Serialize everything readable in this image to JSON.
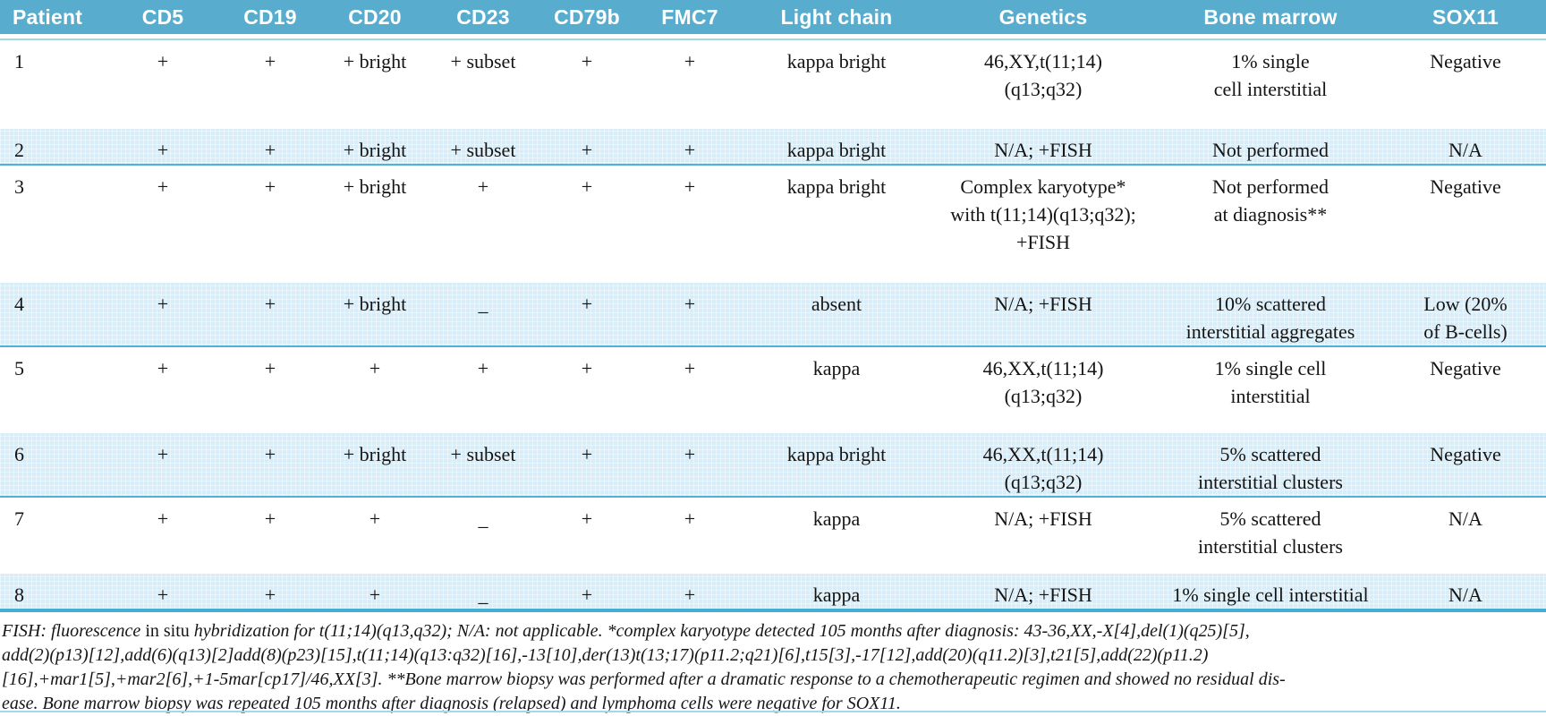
{
  "table": {
    "columns": [
      "Patient",
      "CD5",
      "CD19",
      "CD20",
      "CD23",
      "CD79b",
      "FMC7",
      "Light chain",
      "Genetics",
      "Bone marrow",
      "SOX11"
    ],
    "column_keys": [
      "patient",
      "cd5",
      "cd19",
      "cd20",
      "cd23",
      "cd79b",
      "fmc7",
      "light-chain",
      "genetics",
      "bone-marrow",
      "sox11"
    ],
    "rows": [
      {
        "cells": [
          "1",
          "+",
          "+",
          "+ bright",
          "+ subset",
          "+",
          "+",
          "kappa bright",
          "46,XY,t(11;14)\n(q13;q32)",
          "1% single\ncell interstitial",
          "Negative"
        ]
      },
      {
        "cells": [
          "2",
          "+",
          "+",
          "+ bright",
          "+ subset",
          "+",
          "+",
          "kappa bright",
          "N/A; +FISH",
          "Not performed",
          "N/A"
        ]
      },
      {
        "cells": [
          "3",
          "+",
          "+",
          "+ bright",
          "+",
          "+",
          "+",
          "kappa bright",
          "Complex karyotype*\nwith t(11;14)(q13;q32);\n+FISH",
          "Not performed\nat diagnosis**",
          "Negative"
        ]
      },
      {
        "cells": [
          "4",
          "+",
          "+",
          "+ bright",
          "_",
          "+",
          "+",
          "absent",
          "N/A; +FISH",
          "10% scattered\ninterstitial aggregates",
          "Low (20%\nof B-cells)"
        ]
      },
      {
        "cells": [
          "5",
          "+",
          "+",
          "+",
          "+",
          "+",
          "+",
          "kappa",
          "46,XX,t(11;14)\n(q13;q32)",
          "1% single cell\ninterstitial",
          "Negative"
        ]
      },
      {
        "cells": [
          "6",
          "+",
          "+",
          "+ bright",
          "+ subset",
          "+",
          "+",
          "kappa bright",
          "46,XX,t(11;14)\n(q13;q32)",
          "5% scattered\ninterstitial clusters",
          "Negative"
        ]
      },
      {
        "cells": [
          "7",
          "+",
          "+",
          "+",
          "_",
          "+",
          "+",
          "kappa",
          "N/A; +FISH",
          "5% scattered\ninterstitial clusters",
          "N/A"
        ]
      },
      {
        "cells": [
          "8",
          "+",
          "+",
          "+",
          "_",
          "+",
          "+",
          "kappa",
          "N/A; +FISH",
          "1% single cell interstitial",
          "N/A"
        ]
      }
    ]
  },
  "footnote": {
    "line1_pre": "FISH: fluorescence ",
    "line1_insitu": "in situ",
    "line1_post": " hybridization for t(11;14)(q13,q32); N/A: not applicable. *complex karyotype detected 105 months after diagnosis: 43-36,XX,-X[4],del(1)(q25)[5],",
    "line2": "add(2)(p13)[12],add(6)(q13)[2]add(8)(p23)[15],t(11;14)(q13:q32)[16],-13[10],der(13)t(13;17)(p11.2;q21)[6],t15[3],-17[12],add(20)(q11.2)[3],t21[5],add(22)(p11.2)",
    "line3": "[16],+mar1[5],+mar2[6],+1-5mar[cp17]/46,XX[3]. **Bone marrow biopsy was performed after a dramatic response to a chemotherapeutic regimen and showed no residual dis-",
    "line4": "ease. Bone marrow biopsy was repeated 105 months after diagnosis (relapsed) and lymphoma cells were negative for SOX11."
  },
  "colors": {
    "header_bg": "#58adcf",
    "header_text": "#ffffff",
    "shaded_row_bg": "#d8edf8",
    "row_border": "#4fb3d8"
  }
}
